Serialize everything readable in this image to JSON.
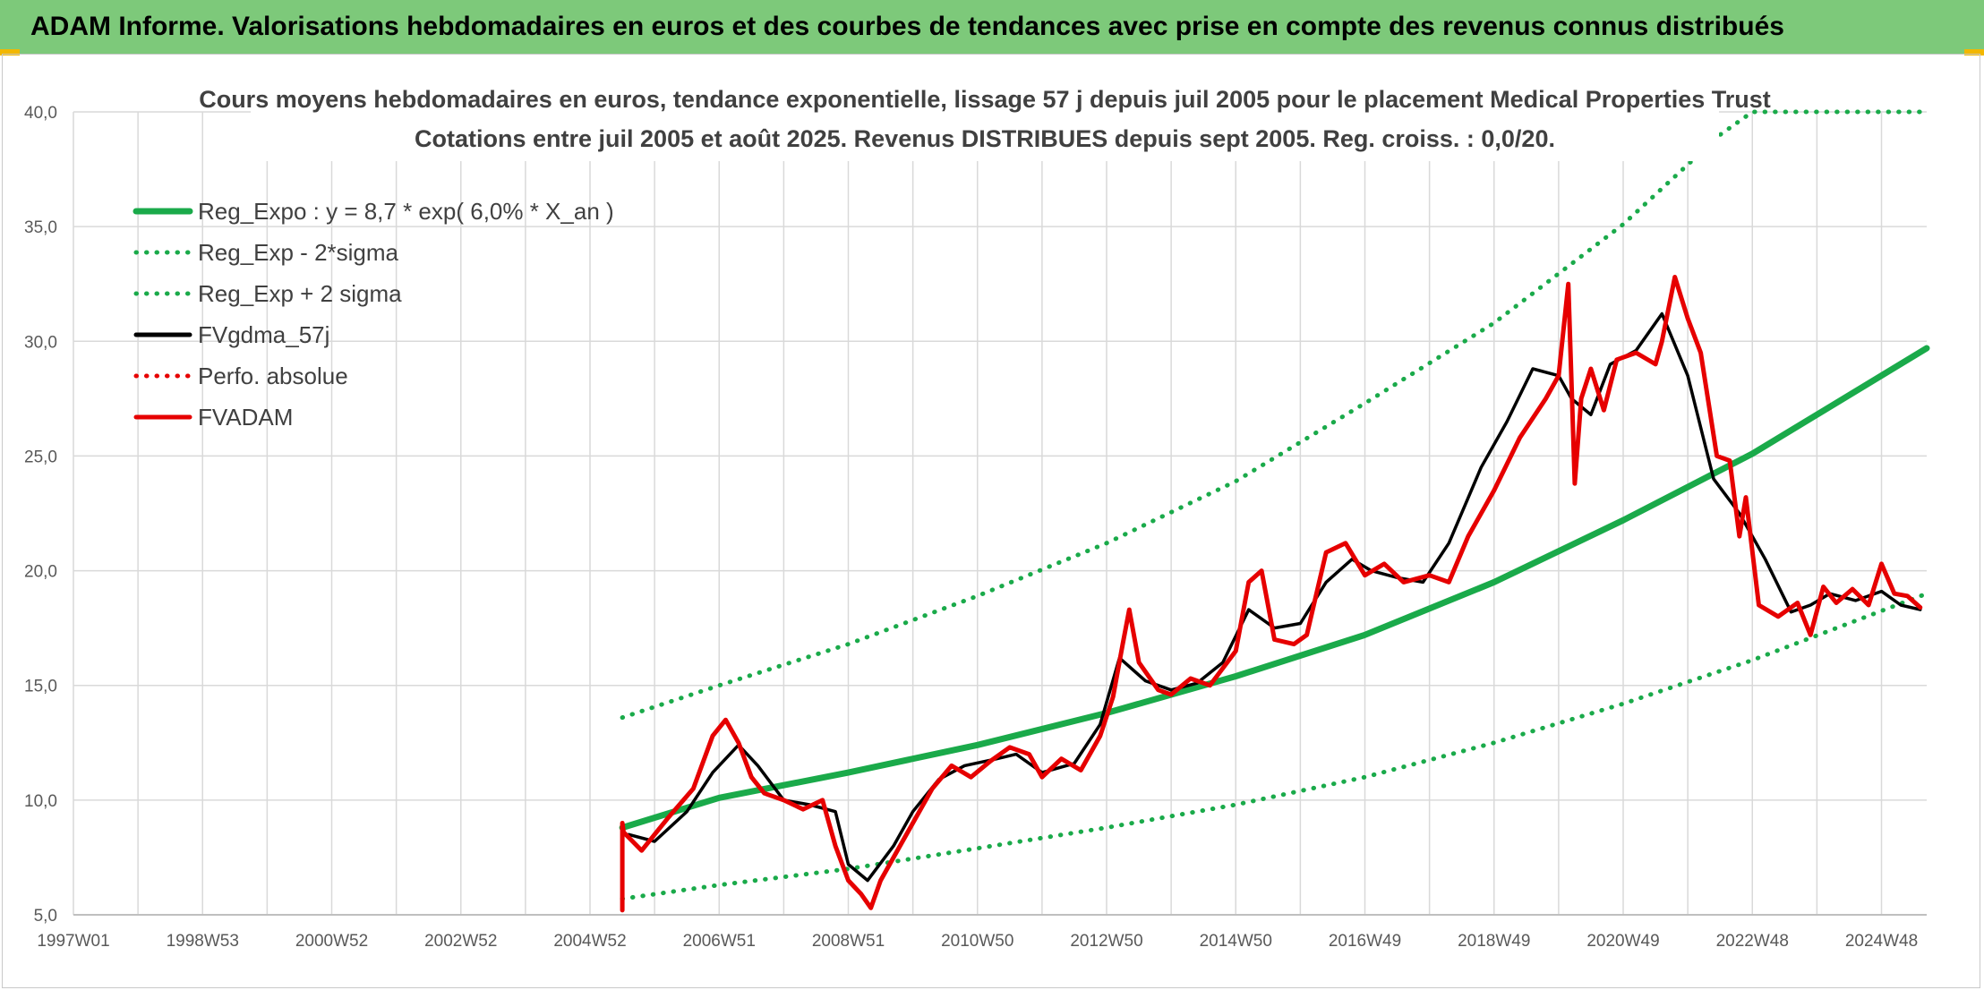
{
  "banner": {
    "title": "ADAM Informe. Valorisations hebdomadaires en euros et des courbes de tendances avec prise en compte des revenus connus distribués"
  },
  "colors": {
    "banner_bg": "#7dc97a",
    "trend": "#1aaa4a",
    "fvgdma": "#000000",
    "fvadam": "#e60000",
    "perfo": "#e60000",
    "grid": "#d9d9d9"
  },
  "chart_data": {
    "type": "line",
    "title": "Cours moyens hebdomadaires en euros, tendance exponentielle, lissage 57 j depuis juil 2005 pour le placement Medical Properties Trust",
    "subtitle": "Cotations entre juil 2005 et août 2025. Revenus DISTRIBUES depuis sept 2005. Reg. croiss. : 0,0/20.",
    "xlabel": "",
    "ylabel": "",
    "ylim": [
      5,
      40
    ],
    "xlim": [
      1997.0,
      2025.7
    ],
    "grid": true,
    "legend_position": "top-left",
    "y_ticks": [
      "5,0",
      "10,0",
      "15,0",
      "20,0",
      "25,0",
      "30,0",
      "35,0",
      "40,0"
    ],
    "x_ticks": [
      {
        "label": "1997W01",
        "x": 1997.0
      },
      {
        "label": "1998W53",
        "x": 1999.0
      },
      {
        "label": "2000W52",
        "x": 2001.0
      },
      {
        "label": "2002W52",
        "x": 2003.0
      },
      {
        "label": "2004W52",
        "x": 2005.0
      },
      {
        "label": "2006W51",
        "x": 2007.0
      },
      {
        "label": "2008W51",
        "x": 2009.0
      },
      {
        "label": "2010W50",
        "x": 2011.0
      },
      {
        "label": "2012W50",
        "x": 2013.0
      },
      {
        "label": "2014W50",
        "x": 2015.0
      },
      {
        "label": "2016W49",
        "x": 2017.0
      },
      {
        "label": "2018W49",
        "x": 2019.0
      },
      {
        "label": "2020W49",
        "x": 2021.0
      },
      {
        "label": "2022W48",
        "x": 2023.0
      },
      {
        "label": "2024W48",
        "x": 2025.0
      }
    ],
    "series": [
      {
        "name": "Reg_Expo : y = 8,7 * exp( 6,0% *  X_an )",
        "style": "solid-thick",
        "color": "#1aaa4a",
        "x": [
          2005.5,
          2007.0,
          2009.0,
          2011.0,
          2013.0,
          2015.0,
          2017.0,
          2019.0,
          2021.0,
          2023.0,
          2025.7
        ],
        "y": [
          8.8,
          10.1,
          11.2,
          12.4,
          13.8,
          15.4,
          17.2,
          19.5,
          22.2,
          25.1,
          29.7
        ]
      },
      {
        "name": "Reg_Exp - 2*sigma",
        "style": "dotted",
        "color": "#1aaa4a",
        "x": [
          2005.5,
          2007.0,
          2009.0,
          2011.0,
          2013.0,
          2015.0,
          2017.0,
          2019.0,
          2021.0,
          2023.0,
          2025.7
        ],
        "y": [
          5.7,
          6.3,
          7.0,
          7.9,
          8.8,
          9.8,
          11.0,
          12.5,
          14.2,
          16.1,
          19.0
        ]
      },
      {
        "name": "Reg_Exp + 2 sigma",
        "style": "dotted",
        "color": "#1aaa4a",
        "x": [
          2005.5,
          2007.0,
          2009.0,
          2011.0,
          2013.0,
          2015.0,
          2017.0,
          2019.0,
          2021.0,
          2022.5,
          2023.0,
          2025.7
        ],
        "y": [
          13.6,
          15.0,
          16.8,
          18.9,
          21.2,
          23.9,
          27.3,
          30.8,
          35.1,
          39.0,
          40.0,
          40.0
        ]
      },
      {
        "name": "FVgdma_57j",
        "style": "solid",
        "color": "#000000",
        "x": [
          2005.6,
          2006.0,
          2006.5,
          2006.9,
          2007.3,
          2007.6,
          2008.0,
          2008.4,
          2008.8,
          2009.0,
          2009.3,
          2009.7,
          2010.0,
          2010.4,
          2010.8,
          2011.3,
          2011.6,
          2012.0,
          2012.5,
          2012.9,
          2013.2,
          2013.6,
          2014.0,
          2014.4,
          2014.8,
          2015.2,
          2015.6,
          2016.0,
          2016.4,
          2016.8,
          2017.1,
          2017.5,
          2017.9,
          2018.3,
          2018.8,
          2019.2,
          2019.6,
          2020.0,
          2020.2,
          2020.5,
          2020.8,
          2021.2,
          2021.6,
          2022.0,
          2022.4,
          2022.8,
          2023.2,
          2023.6,
          2023.9,
          2024.2,
          2024.6,
          2025.0,
          2025.3,
          2025.6
        ],
        "y": [
          8.5,
          8.2,
          9.5,
          11.2,
          12.4,
          11.5,
          10.0,
          9.8,
          9.5,
          7.2,
          6.5,
          8.0,
          9.5,
          10.9,
          11.5,
          11.8,
          12.0,
          11.2,
          11.6,
          13.3,
          16.2,
          15.2,
          14.8,
          15.1,
          16.0,
          18.3,
          17.5,
          17.7,
          19.5,
          20.5,
          20.0,
          19.7,
          19.5,
          21.2,
          24.5,
          26.5,
          28.8,
          28.5,
          27.5,
          26.8,
          29.0,
          29.6,
          31.2,
          28.5,
          24.0,
          22.5,
          20.5,
          18.2,
          18.5,
          19.0,
          18.7,
          19.1,
          18.5,
          18.3
        ]
      },
      {
        "name": "Perfo. absolue",
        "style": "dotted",
        "color": "#e60000",
        "x": [],
        "y": []
      },
      {
        "name": "FVADAM",
        "style": "solid-thick",
        "color": "#e60000",
        "x": [
          2005.5,
          2005.5,
          2005.52,
          2005.8,
          2006.0,
          2006.2,
          2006.6,
          2006.9,
          2007.1,
          2007.3,
          2007.5,
          2007.7,
          2008.0,
          2008.3,
          2008.6,
          2008.8,
          2009.0,
          2009.2,
          2009.35,
          2009.5,
          2009.8,
          2010.0,
          2010.3,
          2010.6,
          2010.9,
          2011.2,
          2011.5,
          2011.8,
          2012.0,
          2012.3,
          2012.6,
          2012.9,
          2013.1,
          2013.25,
          2013.35,
          2013.5,
          2013.8,
          2014.0,
          2014.3,
          2014.6,
          2015.0,
          2015.2,
          2015.4,
          2015.6,
          2015.9,
          2016.1,
          2016.4,
          2016.7,
          2017.0,
          2017.3,
          2017.6,
          2018.0,
          2018.3,
          2018.6,
          2019.0,
          2019.4,
          2019.8,
          2020.0,
          2020.15,
          2020.25,
          2020.35,
          2020.5,
          2020.7,
          2020.9,
          2021.2,
          2021.5,
          2021.6,
          2021.8,
          2022.0,
          2022.2,
          2022.45,
          2022.65,
          2022.8,
          2022.9,
          2023.1,
          2023.4,
          2023.7,
          2023.9,
          2024.1,
          2024.3,
          2024.55,
          2024.8,
          2025.0,
          2025.2,
          2025.4,
          2025.6
        ],
        "y": [
          5.2,
          9.0,
          8.6,
          7.8,
          8.5,
          9.2,
          10.5,
          12.8,
          13.5,
          12.5,
          11.0,
          10.3,
          10.0,
          9.6,
          10.0,
          8.0,
          6.5,
          5.9,
          5.3,
          6.5,
          8.0,
          9.0,
          10.5,
          11.5,
          11.0,
          11.7,
          12.3,
          12.0,
          11.0,
          11.8,
          11.3,
          12.8,
          14.5,
          16.8,
          18.3,
          16.0,
          14.8,
          14.6,
          15.3,
          15.0,
          16.5,
          19.5,
          20.0,
          17.0,
          16.8,
          17.2,
          20.8,
          21.2,
          19.8,
          20.3,
          19.5,
          19.8,
          19.5,
          21.5,
          23.5,
          25.8,
          27.5,
          28.5,
          32.5,
          23.8,
          27.5,
          28.8,
          27.0,
          29.2,
          29.5,
          29.0,
          30.0,
          32.8,
          31.0,
          29.5,
          25.0,
          24.8,
          21.5,
          23.2,
          18.5,
          18.0,
          18.6,
          17.2,
          19.3,
          18.6,
          19.2,
          18.5,
          20.3,
          19.0,
          18.9,
          18.4
        ]
      }
    ]
  }
}
